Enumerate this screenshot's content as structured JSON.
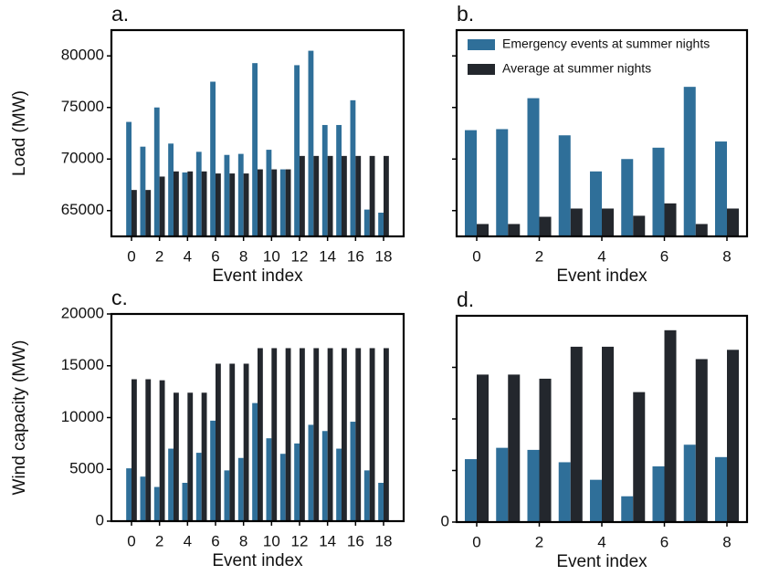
{
  "chart_data": [
    {
      "type": "bar",
      "label": "a.",
      "xlabel": "Event index",
      "ylabel": "Load (MW)",
      "categories": [
        0,
        null,
        2,
        null,
        4,
        null,
        6,
        null,
        8,
        null,
        10,
        null,
        12,
        null,
        14,
        null,
        16,
        null,
        18
      ],
      "series": [
        {
          "color": "#2f6f99",
          "values": [
            73600,
            71200,
            75000,
            71500,
            68700,
            70700,
            77500,
            70400,
            70500,
            79300,
            70900,
            69000,
            79100,
            80500,
            73300,
            73300,
            75700,
            65100,
            64800
          ]
        },
        {
          "color": "#23272d",
          "values": [
            67000,
            67000,
            68300,
            68800,
            68800,
            68800,
            68600,
            68600,
            68600,
            69000,
            69000,
            69000,
            70300,
            70300,
            70300,
            70300,
            70300,
            70300,
            70300
          ]
        }
      ],
      "ylim": [
        62500,
        82500
      ],
      "yticks": [
        65000,
        70000,
        75000,
        80000
      ]
    },
    {
      "type": "bar",
      "label": "b.",
      "xlabel": "Event index",
      "legend": "upper right",
      "categories": [
        0,
        null,
        2,
        null,
        4,
        null,
        6,
        null,
        8
      ],
      "series": [
        {
          "name": "Emergency events at summer nights",
          "color": "#2f6f99",
          "values": [
            72800,
            72900,
            75900,
            72300,
            68800,
            70000,
            71100,
            77000,
            71700
          ]
        },
        {
          "name": "Average at summer nights",
          "color": "#23272d",
          "values": [
            63700,
            63700,
            64400,
            65200,
            65200,
            64500,
            65700,
            63700,
            65200
          ]
        }
      ],
      "ylim": [
        62500,
        82500
      ],
      "unlabeled_yticks": [
        65000,
        70000,
        75000,
        80000
      ]
    },
    {
      "type": "bar",
      "label": "c.",
      "xlabel": "Event index",
      "ylabel": "Wind capacity (MW)",
      "categories": [
        0,
        null,
        2,
        null,
        4,
        null,
        6,
        null,
        8,
        null,
        10,
        null,
        12,
        null,
        14,
        null,
        16,
        null,
        18
      ],
      "series": [
        {
          "color": "#2f6f99",
          "values": [
            5100,
            4300,
            3300,
            7000,
            3700,
            6600,
            9700,
            4900,
            6100,
            11400,
            8000,
            6500,
            7500,
            9300,
            8700,
            7000,
            9600,
            4900,
            3700
          ]
        },
        {
          "color": "#23272d",
          "values": [
            13700,
            13700,
            13600,
            12400,
            12400,
            12400,
            15200,
            15200,
            15200,
            16700,
            16700,
            16700,
            16700,
            16700,
            16700,
            16700,
            16700,
            16700,
            16700
          ]
        }
      ],
      "ylim": [
        0,
        20000
      ],
      "yticks": [
        0,
        5000,
        10000,
        15000,
        20000
      ]
    },
    {
      "type": "bar",
      "label": "d.",
      "xlabel": "Event index",
      "categories": [
        0,
        null,
        2,
        null,
        4,
        null,
        6,
        null,
        8
      ],
      "series": [
        {
          "color": "#2f6f99",
          "values": [
            6100,
            7200,
            7000,
            5800,
            4100,
            2500,
            5400,
            7500,
            6300
          ]
        },
        {
          "color": "#23272d",
          "values": [
            14300,
            14300,
            13900,
            17000,
            17000,
            12600,
            18600,
            15800,
            16700
          ]
        }
      ],
      "ylim": [
        0,
        20000
      ],
      "yticks": [
        0
      ],
      "unlabeled_yticks": [
        5000,
        10000,
        15000
      ]
    }
  ]
}
